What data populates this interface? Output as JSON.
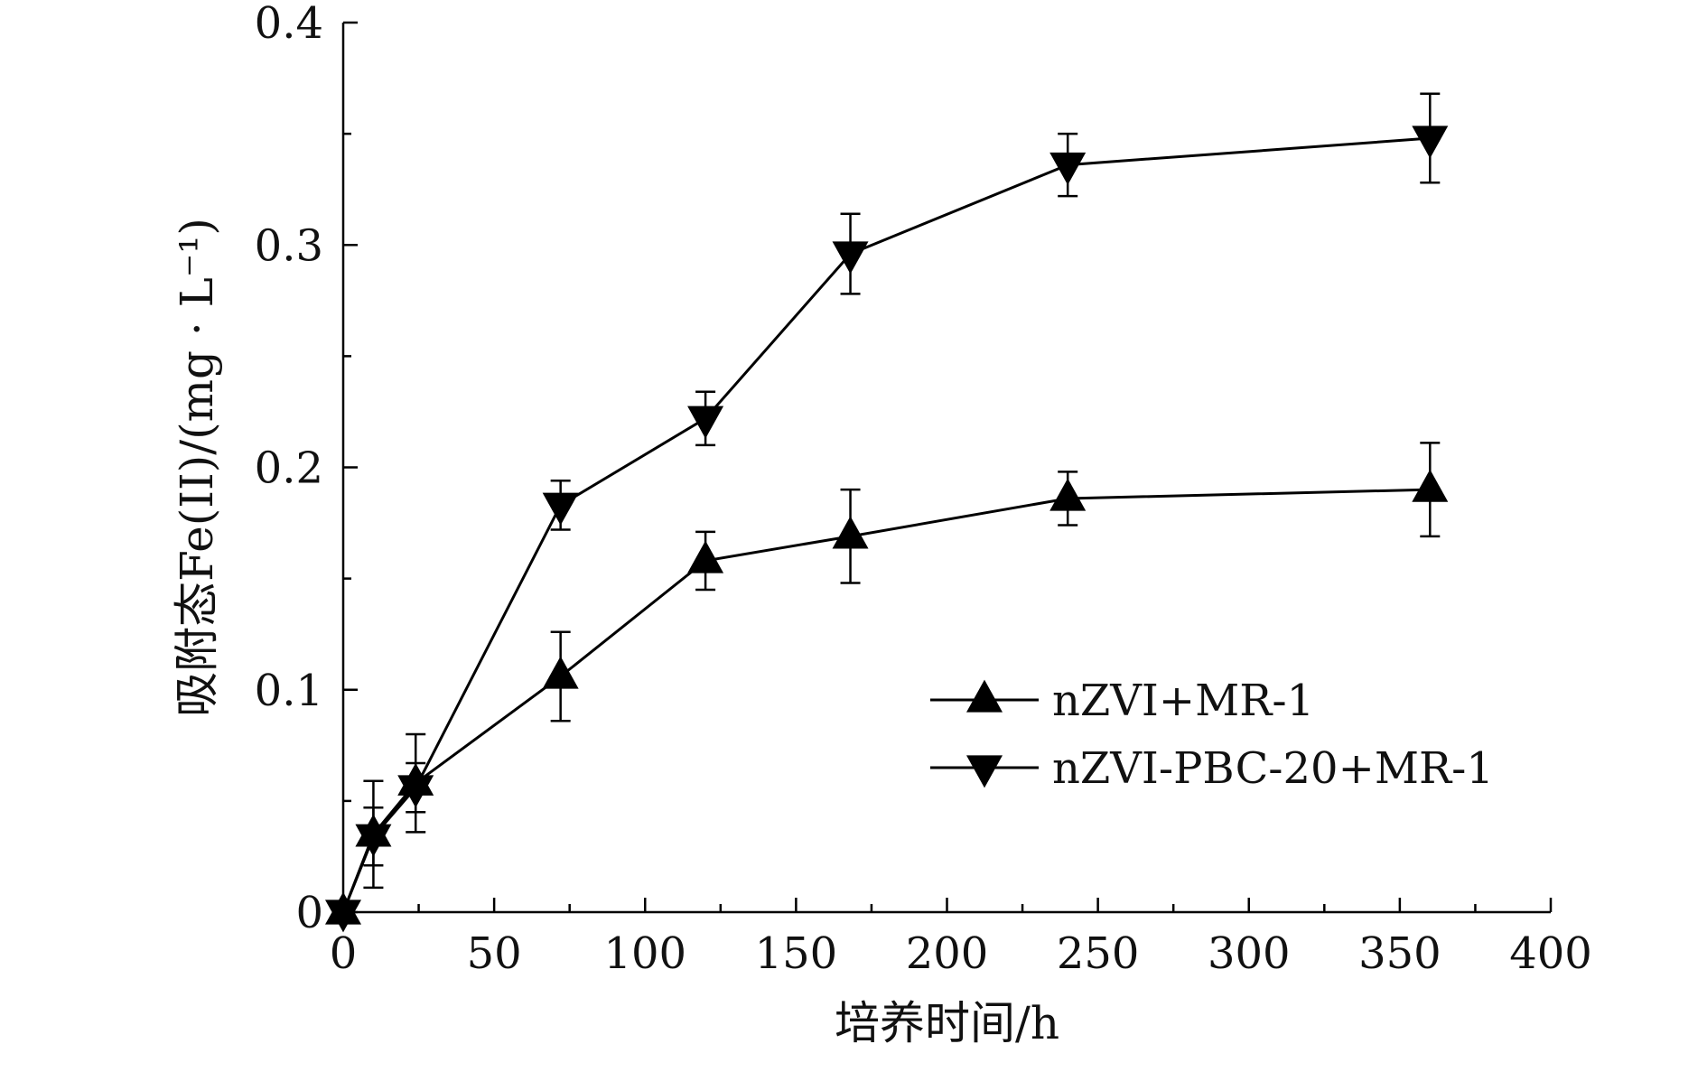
{
  "chart_data": {
    "type": "line",
    "title": "",
    "xlabel": "培养时间/h",
    "ylabel": "吸附态Fe(II)/(mg · L⁻¹)",
    "xlim": [
      0,
      400
    ],
    "ylim": [
      0,
      0.4
    ],
    "x_ticks": [
      0,
      50,
      100,
      150,
      200,
      250,
      300,
      350,
      400
    ],
    "x_tick_labels": [
      "0",
      "50",
      "100",
      "150",
      "200",
      "250",
      "300",
      "350",
      "400"
    ],
    "y_ticks": [
      0,
      0.1,
      0.2,
      0.3,
      0.4
    ],
    "y_tick_labels": [
      "0",
      "0.1",
      "0.2",
      "0.3",
      "0.4"
    ],
    "grid": false,
    "legend_position": "center-right",
    "series": [
      {
        "name": "nZVI+MR-1",
        "marker": "triangle-up",
        "color": "#000000",
        "x": [
          0,
          10,
          24,
          72,
          120,
          168,
          240,
          360
        ],
        "y": [
          0.0,
          0.035,
          0.058,
          0.106,
          0.158,
          0.169,
          0.186,
          0.19
        ],
        "error": [
          0.0,
          0.024,
          0.022,
          0.02,
          0.013,
          0.021,
          0.012,
          0.021
        ]
      },
      {
        "name": "nZVI-PBC-20+MR-1",
        "marker": "triangle-down",
        "color": "#000000",
        "x": [
          0,
          10,
          24,
          72,
          120,
          168,
          240,
          360
        ],
        "y": [
          0.0,
          0.034,
          0.056,
          0.183,
          0.222,
          0.296,
          0.336,
          0.348
        ],
        "error": [
          0.0,
          0.013,
          0.011,
          0.011,
          0.012,
          0.018,
          0.014,
          0.02
        ]
      }
    ]
  }
}
